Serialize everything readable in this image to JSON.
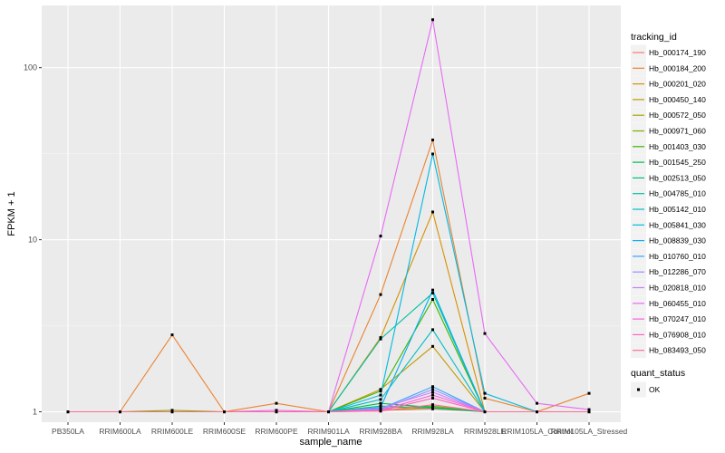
{
  "chart_data": {
    "type": "line",
    "x_scale": "categorical",
    "y_scale": "log10",
    "xlabel": "sample_name",
    "ylabel": "FPKM + 1",
    "ylim": [
      0.87,
      230
    ],
    "y_ticks": [
      1,
      10,
      100
    ],
    "y_tick_labels": [
      "1",
      "10",
      "100"
    ],
    "categories": [
      "PB350LA",
      "RRIM600LA",
      "RRIM600LE",
      "RRIM600SE",
      "RRIM600PE",
      "RRIM901LA",
      "RRIM928BA",
      "RRIM928LA",
      "RRIM928LE",
      "RRIM105LA_Control",
      "RRIM105LA_Stressed"
    ],
    "legend": {
      "title": "tracking_id",
      "shape_title": "quant_status",
      "shape_items": [
        "OK"
      ]
    },
    "series": [
      {
        "name": "Hb_000174_190",
        "color": "#F8766D",
        "values": [
          1,
          1,
          1,
          1,
          1,
          1,
          1.02,
          1.04,
          1,
          1,
          1
        ]
      },
      {
        "name": "Hb_000184_200",
        "color": "#EA8331",
        "values": [
          1,
          1,
          2.8,
          1,
          1.12,
          1,
          4.8,
          38,
          1.2,
          1,
          1.28
        ]
      },
      {
        "name": "Hb_000201_020",
        "color": "#D89000",
        "values": [
          1,
          1,
          1,
          1,
          1,
          1,
          2.7,
          14.5,
          1,
          1,
          1
        ]
      },
      {
        "name": "Hb_000450_140",
        "color": "#C09B00",
        "values": [
          1,
          1,
          1,
          1,
          1,
          1,
          1.35,
          2.4,
          1,
          1,
          1
        ]
      },
      {
        "name": "Hb_000572_050",
        "color": "#A3A500",
        "values": [
          1,
          1,
          1,
          1,
          1,
          1,
          1.02,
          1.06,
          1,
          1,
          1
        ]
      },
      {
        "name": "Hb_000971_060",
        "color": "#7CAE00",
        "values": [
          1,
          1,
          1.02,
          1,
          1,
          1,
          1.05,
          1.08,
          1,
          1,
          1
        ]
      },
      {
        "name": "Hb_001403_030",
        "color": "#39B600",
        "values": [
          1,
          1,
          1,
          1,
          1,
          1,
          1.32,
          4.5,
          1,
          1,
          1
        ]
      },
      {
        "name": "Hb_001545_250",
        "color": "#00BB4E",
        "values": [
          1,
          1,
          1,
          1,
          1,
          1,
          1.12,
          1.06,
          1,
          1,
          1
        ]
      },
      {
        "name": "Hb_002513_050",
        "color": "#00BF7D",
        "values": [
          1,
          1,
          1,
          1,
          1,
          1,
          1.08,
          1.05,
          1,
          1,
          1
        ]
      },
      {
        "name": "Hb_004785_010",
        "color": "#00C1A3",
        "values": [
          1,
          1,
          1,
          1,
          1,
          1,
          2.65,
          4.9,
          1,
          1,
          1
        ]
      },
      {
        "name": "Hb_005142_010",
        "color": "#00BFC4",
        "values": [
          1,
          1,
          1,
          1,
          1,
          1,
          1.18,
          3,
          1,
          1,
          1
        ]
      },
      {
        "name": "Hb_005841_030",
        "color": "#00BAE0",
        "values": [
          1,
          1,
          1,
          1,
          1,
          1,
          1.25,
          31.5,
          1.28,
          1,
          1
        ]
      },
      {
        "name": "Hb_008839_030",
        "color": "#00B0F6",
        "values": [
          1,
          1,
          1,
          1,
          1,
          1,
          1.06,
          5.1,
          1,
          1,
          1
        ]
      },
      {
        "name": "Hb_010760_010",
        "color": "#35A2FF",
        "values": [
          1,
          1,
          1,
          1,
          1,
          1,
          1.04,
          1.4,
          1,
          1,
          1
        ]
      },
      {
        "name": "Hb_012286_070",
        "color": "#9590FF",
        "values": [
          1,
          1,
          1,
          1,
          1,
          1,
          1.03,
          1.35,
          1,
          1,
          1
        ]
      },
      {
        "name": "Hb_020818_010",
        "color": "#C77CFF",
        "values": [
          1,
          1,
          1,
          1,
          1,
          1,
          1.05,
          1.3,
          1,
          1,
          1
        ]
      },
      {
        "name": "Hb_060455_010",
        "color": "#E76BF3",
        "values": [
          1,
          1,
          1,
          1,
          1.02,
          1,
          10.5,
          190,
          2.85,
          1.12,
          1.03
        ]
      },
      {
        "name": "Hb_070247_010",
        "color": "#FA62DB",
        "values": [
          1,
          1,
          1,
          1,
          1,
          1,
          1.02,
          1.25,
          1,
          1,
          1
        ]
      },
      {
        "name": "Hb_076908_010",
        "color": "#FF62BC",
        "values": [
          1,
          1,
          1,
          1,
          1,
          1,
          1.01,
          1.2,
          1,
          1,
          1
        ]
      },
      {
        "name": "Hb_083493_050",
        "color": "#FF6C91",
        "values": [
          1,
          1,
          1,
          1,
          1,
          1,
          1.01,
          1.1,
          1,
          1,
          1
        ]
      }
    ]
  }
}
